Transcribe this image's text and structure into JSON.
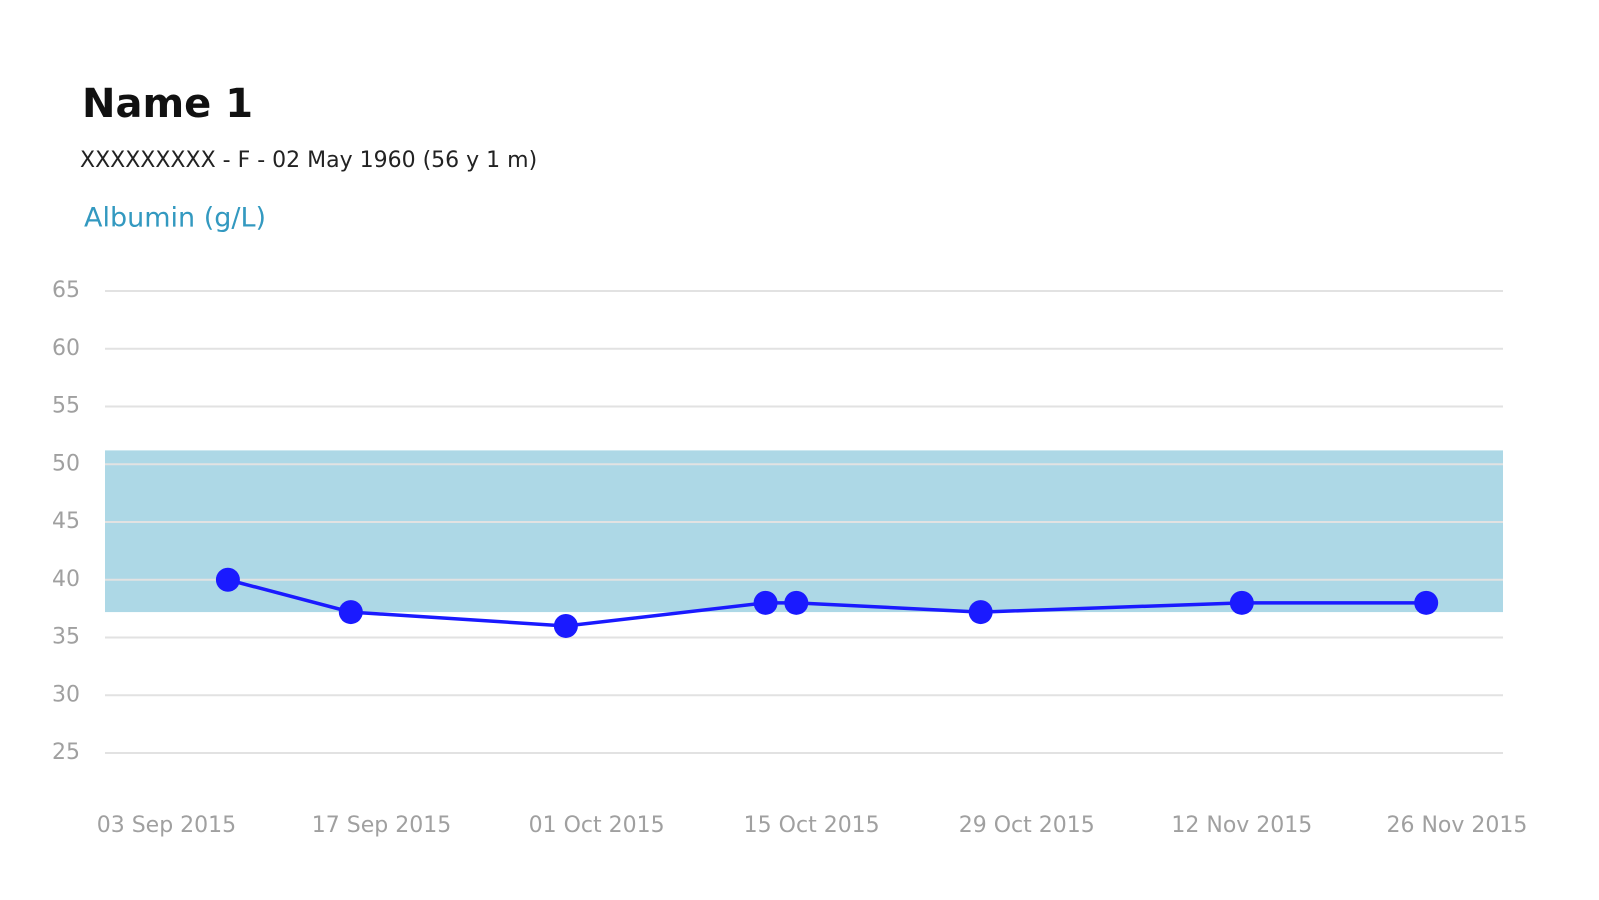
{
  "header": {
    "name": "Name 1",
    "details": "XXXXXXXXX - F - 02 May 1960 (56 y 1 m)"
  },
  "chart_data": {
    "type": "line",
    "title": "Albumin (g/L)",
    "x": [
      "2015-09-07",
      "2015-09-15",
      "2015-09-29",
      "2015-10-12",
      "2015-10-14",
      "2015-10-26",
      "2015-11-12",
      "2015-11-24"
    ],
    "series": [
      {
        "name": "Albumin",
        "color": "#1a1aff",
        "values": [
          40,
          37.2,
          36,
          38,
          38,
          37.2,
          38,
          38
        ]
      }
    ],
    "reference_range": [
      37.2,
      51.2
    ],
    "reference_color": "#add8e6",
    "xlim": [
      "2015-08-30",
      "2015-11-29"
    ],
    "xticks": [
      {
        "value": "2015-09-03",
        "label": "03 Sep 2015"
      },
      {
        "value": "2015-09-17",
        "label": "17 Sep 2015"
      },
      {
        "value": "2015-10-01",
        "label": "01 Oct 2015"
      },
      {
        "value": "2015-10-15",
        "label": "15 Oct 2015"
      },
      {
        "value": "2015-10-29",
        "label": "29 Oct 2015"
      },
      {
        "value": "2015-11-12",
        "label": "12 Nov 2015"
      },
      {
        "value": "2015-11-26",
        "label": "26 Nov 2015"
      }
    ],
    "ylim": [
      25,
      65
    ],
    "yticks": [
      25,
      30,
      35,
      40,
      45,
      50,
      55,
      60,
      65
    ],
    "grid": true
  }
}
